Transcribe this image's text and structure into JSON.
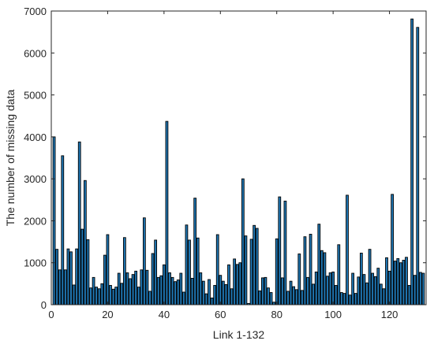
{
  "chart_data": {
    "type": "bar",
    "title": "",
    "xlabel": "Link 1-132",
    "ylabel": "The number of missing data",
    "xlim": [
      0,
      133
    ],
    "ylim": [
      0,
      7000
    ],
    "xticks": [
      0,
      20,
      40,
      60,
      80,
      100,
      120
    ],
    "yticks": [
      0,
      1000,
      2000,
      3000,
      4000,
      5000,
      6000,
      7000
    ],
    "grid": false,
    "legend": "none",
    "bar_color": "#1f77b4",
    "edge_color": "#000000",
    "x": [
      1,
      2,
      3,
      4,
      5,
      6,
      7,
      8,
      9,
      10,
      11,
      12,
      13,
      14,
      15,
      16,
      17,
      18,
      19,
      20,
      21,
      22,
      23,
      24,
      25,
      26,
      27,
      28,
      29,
      30,
      31,
      32,
      33,
      34,
      35,
      36,
      37,
      38,
      39,
      40,
      41,
      42,
      43,
      44,
      45,
      46,
      47,
      48,
      49,
      50,
      51,
      52,
      53,
      54,
      55,
      56,
      57,
      58,
      59,
      60,
      61,
      62,
      63,
      64,
      65,
      66,
      67,
      68,
      69,
      70,
      71,
      72,
      73,
      74,
      75,
      76,
      77,
      78,
      79,
      80,
      81,
      82,
      83,
      84,
      85,
      86,
      87,
      88,
      89,
      90,
      91,
      92,
      93,
      94,
      95,
      96,
      97,
      98,
      99,
      100,
      101,
      102,
      103,
      104,
      105,
      106,
      107,
      108,
      109,
      110,
      111,
      112,
      113,
      114,
      115,
      116,
      117,
      118,
      119,
      120,
      121,
      122,
      123,
      124,
      125,
      126,
      127,
      128,
      129,
      130,
      131,
      132
    ],
    "values": [
      4000,
      1320,
      830,
      3550,
      830,
      1330,
      1260,
      470,
      1330,
      3880,
      1800,
      2960,
      1550,
      400,
      650,
      420,
      380,
      500,
      1180,
      1670,
      460,
      370,
      420,
      750,
      510,
      1600,
      760,
      620,
      720,
      800,
      420,
      830,
      2070,
      820,
      320,
      1220,
      1540,
      650,
      690,
      950,
      4370,
      760,
      650,
      550,
      590,
      750,
      300,
      1900,
      1540,
      630,
      2540,
      1590,
      760,
      560,
      260,
      600,
      160,
      460,
      1670,
      700,
      560,
      480,
      950,
      380,
      1090,
      960,
      1000,
      3000,
      1640,
      30,
      1560,
      1890,
      1820,
      330,
      640,
      650,
      400,
      290,
      60,
      1570,
      2570,
      640,
      2470,
      320,
      560,
      430,
      360,
      1210,
      340,
      1620,
      650,
      1680,
      490,
      780,
      1920,
      1290,
      1240,
      680,
      760,
      780,
      460,
      1430,
      290,
      270,
      2610,
      230,
      750,
      270,
      660,
      1230,
      720,
      520,
      1320,
      750,
      670,
      870,
      490,
      380,
      1120,
      800,
      2630,
      1040,
      1100,
      1000,
      1060,
      1130,
      460,
      6810,
      700,
      6610,
      770,
      750
    ]
  }
}
